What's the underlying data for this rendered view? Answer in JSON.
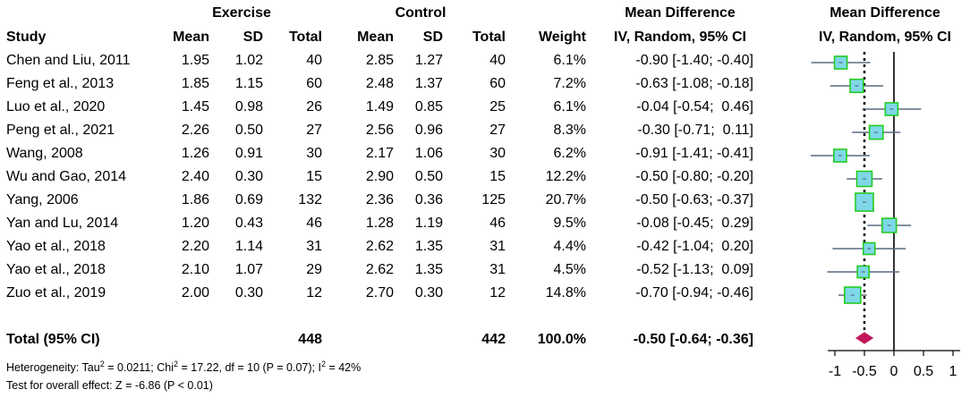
{
  "header": {
    "group1": "Exercise",
    "group2": "Control",
    "md_group": "Mean Difference",
    "md_sub": "IV, Random, 95% CI",
    "plot_title": "Mean Difference",
    "plot_sub": "IV, Random, 95% CI",
    "study": "Study",
    "mean1": "Mean",
    "sd1": "SD",
    "total1": "Total",
    "mean2": "Mean",
    "sd2": "SD",
    "total2": "Total",
    "weight": "Weight"
  },
  "studies": [
    {
      "name": "Chen and Liu, 2011",
      "m1": "1.95",
      "sd1": "1.02",
      "n1": "40",
      "m2": "2.85",
      "sd2": "1.27",
      "n2": "40",
      "w": "6.1%",
      "ci": "-0.90 [-1.40; -0.40]"
    },
    {
      "name": "Feng et al., 2013",
      "m1": "1.85",
      "sd1": "1.15",
      "n1": "60",
      "m2": "2.48",
      "sd2": "1.37",
      "n2": "60",
      "w": "7.2%",
      "ci": "-0.63 [-1.08; -0.18]"
    },
    {
      "name": "Luo et al., 2020",
      "m1": "1.45",
      "sd1": "0.98",
      "n1": "26",
      "m2": "1.49",
      "sd2": "0.85",
      "n2": "25",
      "w": "6.1%",
      "ci": "-0.04 [-0.54;  0.46]"
    },
    {
      "name": "Peng et al., 2021",
      "m1": "2.26",
      "sd1": "0.50",
      "n1": "27",
      "m2": "2.56",
      "sd2": "0.96",
      "n2": "27",
      "w": "8.3%",
      "ci": "-0.30 [-0.71;  0.11]"
    },
    {
      "name": "Wang, 2008",
      "m1": "1.26",
      "sd1": "0.91",
      "n1": "30",
      "m2": "2.17",
      "sd2": "1.06",
      "n2": "30",
      "w": "6.2%",
      "ci": "-0.91 [-1.41; -0.41]"
    },
    {
      "name": "Wu and Gao, 2014",
      "m1": "2.40",
      "sd1": "0.30",
      "n1": "15",
      "m2": "2.90",
      "sd2": "0.50",
      "n2": "15",
      "w": "12.2%",
      "ci": "-0.50 [-0.80; -0.20]"
    },
    {
      "name": "Yang, 2006",
      "m1": "1.86",
      "sd1": "0.69",
      "n1": "132",
      "m2": "2.36",
      "sd2": "0.36",
      "n2": "125",
      "w": "20.7%",
      "ci": "-0.50 [-0.63; -0.37]"
    },
    {
      "name": "Yan and Lu, 2014",
      "m1": "1.20",
      "sd1": "0.43",
      "n1": "46",
      "m2": "1.28",
      "sd2": "1.19",
      "n2": "46",
      "w": "9.5%",
      "ci": "-0.08 [-0.45;  0.29]"
    },
    {
      "name": "Yao et al., 2018",
      "m1": "2.20",
      "sd1": "1.14",
      "n1": "31",
      "m2": "2.62",
      "sd2": "1.35",
      "n2": "31",
      "w": "4.4%",
      "ci": "-0.42 [-1.04;  0.20]"
    },
    {
      "name": "Yao et al., 2018",
      "m1": "2.10",
      "sd1": "1.07",
      "n1": "29",
      "m2": "2.62",
      "sd2": "1.35",
      "n2": "31",
      "w": "4.5%",
      "ci": "-0.52 [-1.13;  0.09]"
    },
    {
      "name": "Zuo et al., 2019",
      "m1": "2.00",
      "sd1": "0.30",
      "n1": "12",
      "m2": "2.70",
      "sd2": "0.30",
      "n2": "12",
      "w": "14.8%",
      "ci": "-0.70 [-0.94; -0.46]"
    }
  ],
  "total": {
    "label": "Total (95% CI)",
    "n1": "448",
    "n2": "442",
    "w": "100.0%",
    "ci": "-0.50 [-0.64; -0.36]"
  },
  "footer": {
    "het_prefix": "Heterogeneity: Tau",
    "het_sup1": "2",
    "het_mid": " = 0.0211; Chi",
    "het_sup2": "2",
    "het_mid2": " = 17.22, df = 10 (P = 0.07); I",
    "het_sup3": "2",
    "het_end": " = 42%",
    "overall": "Test for overall effect: Z = -6.86 (P < 0.01)"
  },
  "colors": {
    "square_fill": "#7fd8e8",
    "square_edge": "#22cc22",
    "ci_line": "#5a6a80",
    "diamond": "#c2185b",
    "axis": "#000000"
  },
  "chart_data": {
    "type": "forest",
    "x_ticks": [
      -1,
      -0.5,
      0,
      0.5,
      1
    ],
    "x_tick_labels": [
      "-1",
      "-0.5",
      "0",
      "0.5",
      "1"
    ],
    "xlim": [
      -1.12,
      1.12
    ],
    "null_line": 0,
    "pooled_reference_line": -0.5,
    "studies": [
      {
        "est": -0.9,
        "lo": -1.4,
        "hi": -0.4,
        "weight": 6.1
      },
      {
        "est": -0.63,
        "lo": -1.08,
        "hi": -0.18,
        "weight": 7.2
      },
      {
        "est": -0.04,
        "lo": -0.54,
        "hi": 0.46,
        "weight": 6.1
      },
      {
        "est": -0.3,
        "lo": -0.71,
        "hi": 0.11,
        "weight": 8.3
      },
      {
        "est": -0.91,
        "lo": -1.41,
        "hi": -0.41,
        "weight": 6.2
      },
      {
        "est": -0.5,
        "lo": -0.8,
        "hi": -0.2,
        "weight": 12.2
      },
      {
        "est": -0.5,
        "lo": -0.63,
        "hi": -0.37,
        "weight": 20.7
      },
      {
        "est": -0.08,
        "lo": -0.45,
        "hi": 0.29,
        "weight": 9.5
      },
      {
        "est": -0.42,
        "lo": -1.04,
        "hi": 0.2,
        "weight": 4.4
      },
      {
        "est": -0.52,
        "lo": -1.13,
        "hi": 0.09,
        "weight": 4.5
      },
      {
        "est": -0.7,
        "lo": -0.94,
        "hi": -0.46,
        "weight": 14.8
      }
    ],
    "pooled": {
      "est": -0.5,
      "lo": -0.64,
      "hi": -0.36
    }
  }
}
